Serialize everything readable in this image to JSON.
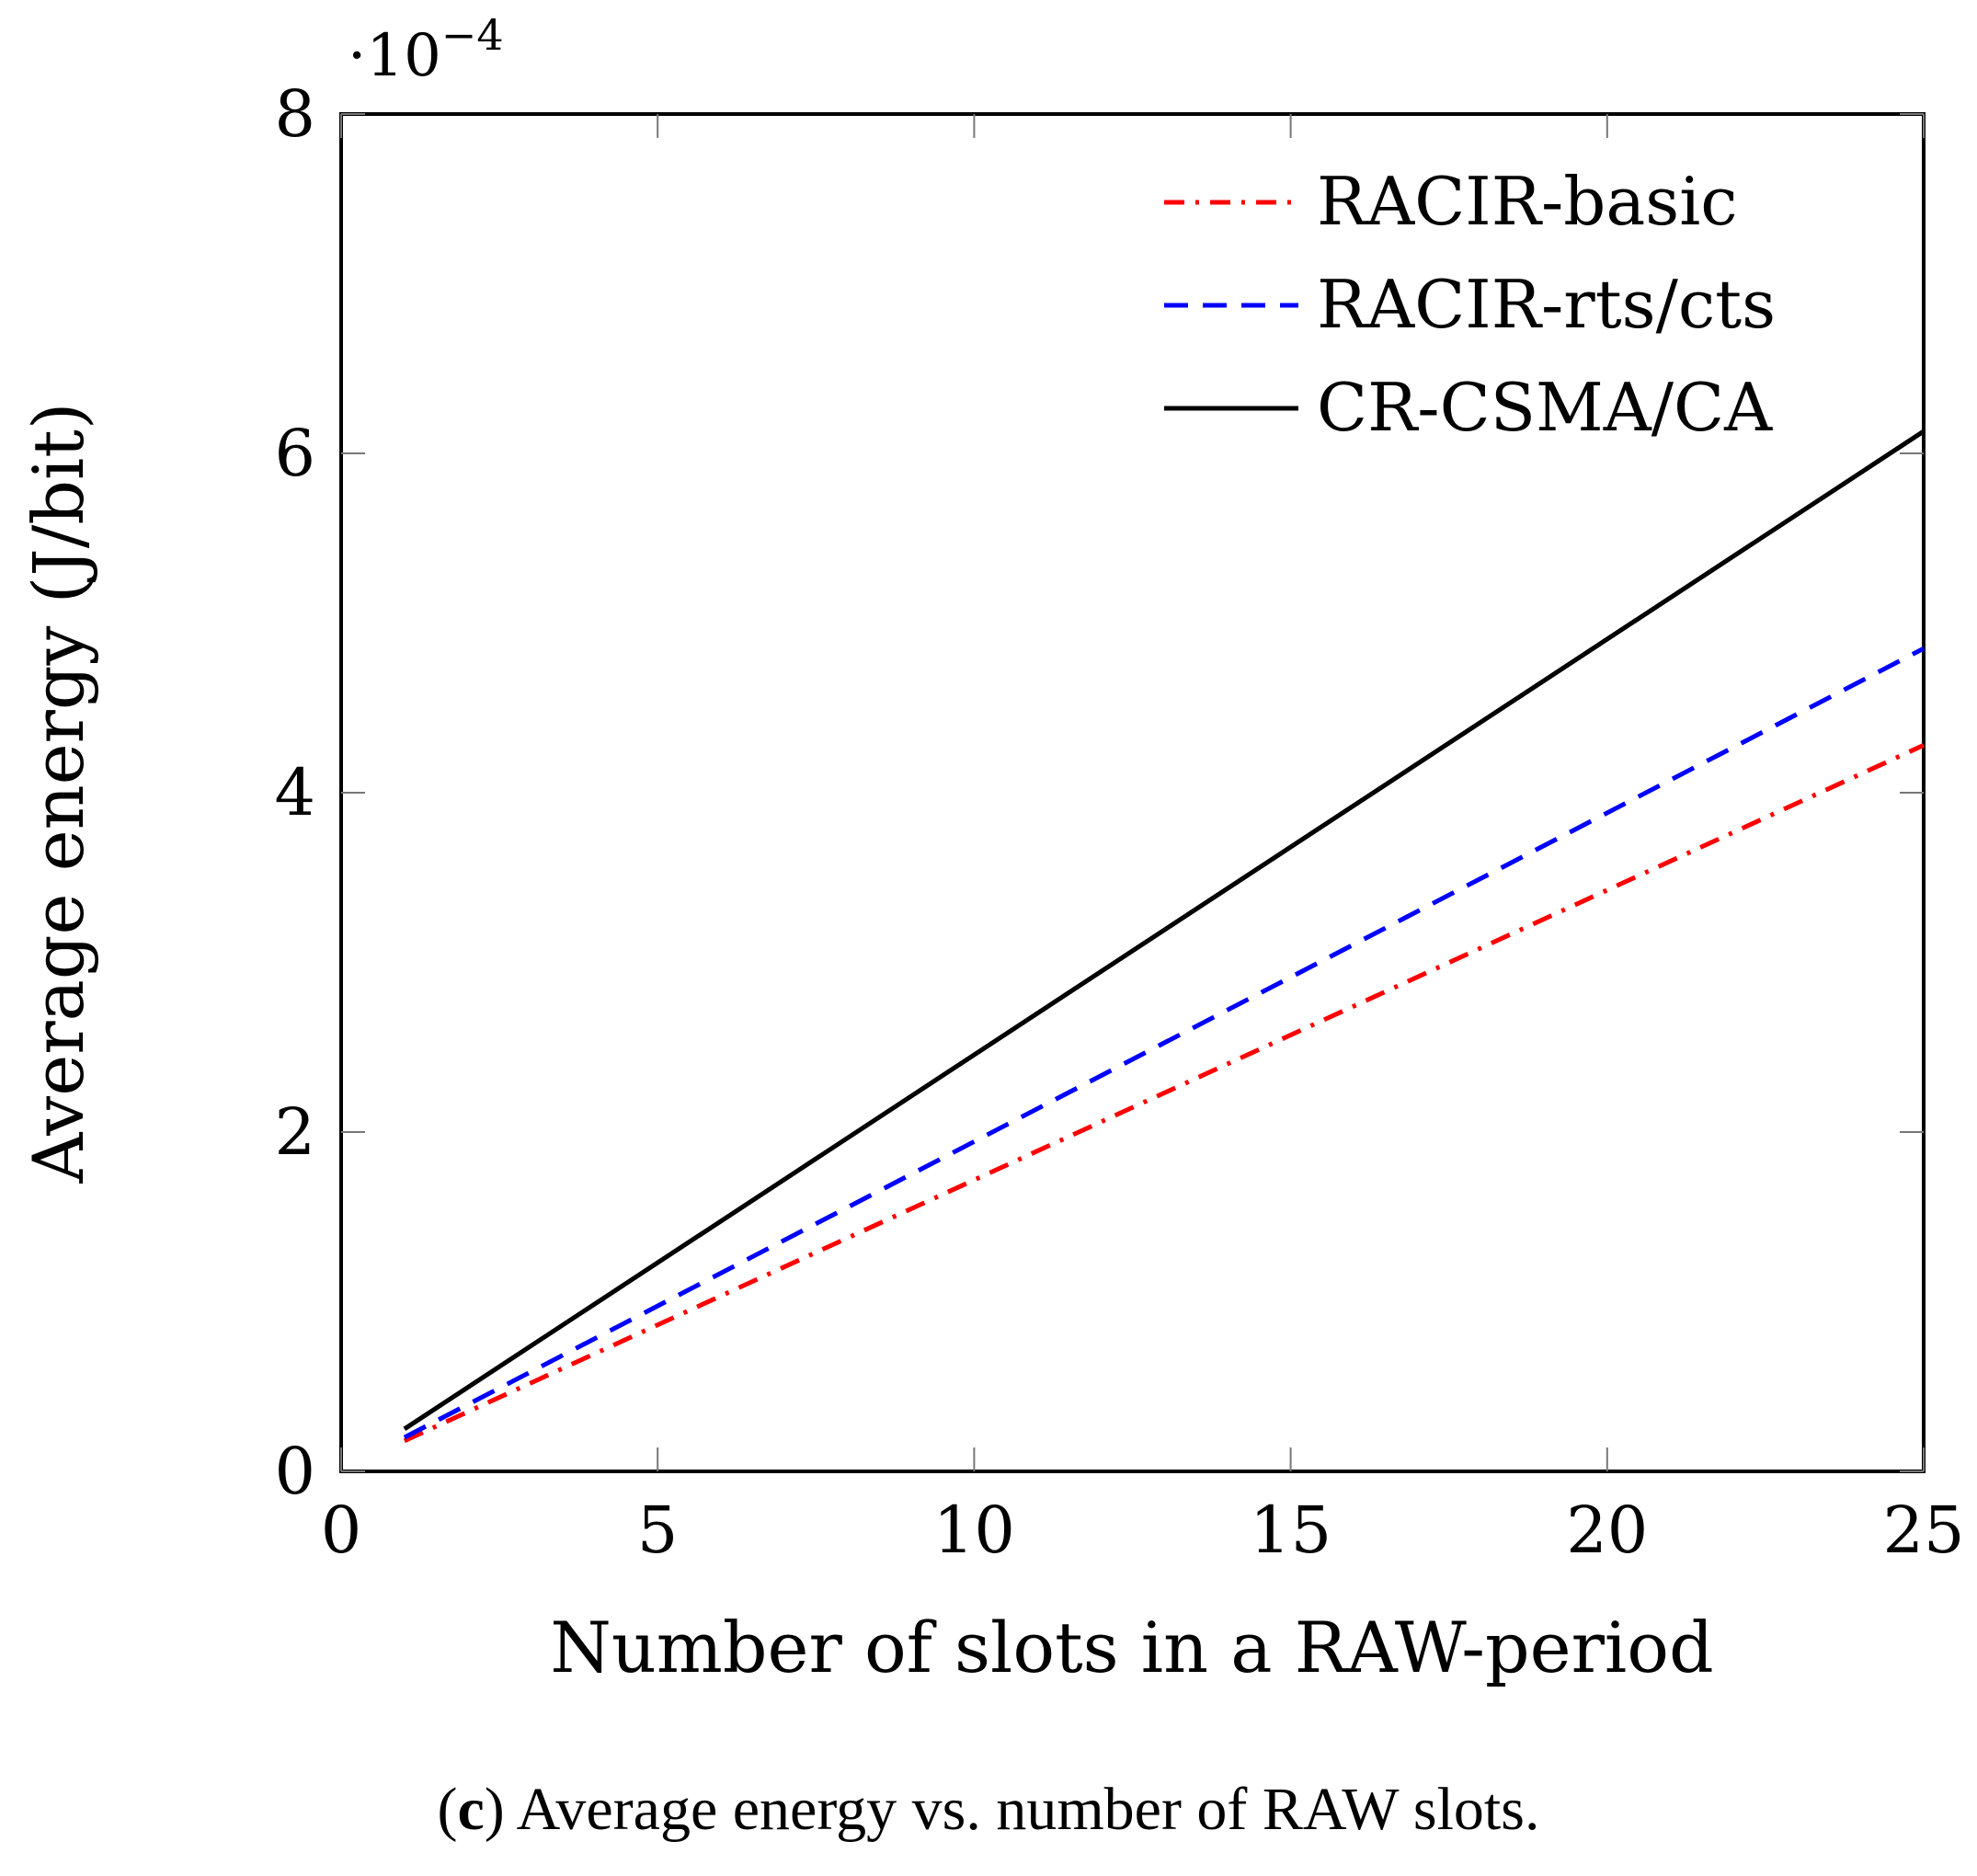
{
  "chart_data": {
    "type": "line",
    "x": [
      1,
      25
    ],
    "series": [
      {
        "name": "RACIR-basic",
        "color": "#ff0000",
        "style": "dash-dot",
        "values": [
          1.8e-05,
          0.000428
        ]
      },
      {
        "name": "RACIR-rts/cts",
        "color": "#0000ff",
        "style": "dashed",
        "values": [
          2e-05,
          0.000485
        ]
      },
      {
        "name": "CR-CSMA/CA",
        "color": "#000000",
        "style": "solid",
        "values": [
          2.5e-05,
          0.000613
        ]
      }
    ],
    "xlabel": "Number of slots in a RAW-period",
    "ylabel": "Average energy (J/bit)",
    "xlim": [
      0,
      25
    ],
    "ylim": [
      0,
      0.0008
    ],
    "x_ticks": [
      "0",
      "5",
      "10",
      "15",
      "20",
      "25"
    ],
    "y_ticks": [
      "0",
      "2",
      "4",
      "6",
      "8"
    ],
    "y_scale_label": "·10",
    "y_scale_exponent": "−4",
    "grid": false,
    "legend_position": "top-right"
  },
  "caption": {
    "label": "c",
    "text": "Average energy vs. number of RAW slots."
  }
}
